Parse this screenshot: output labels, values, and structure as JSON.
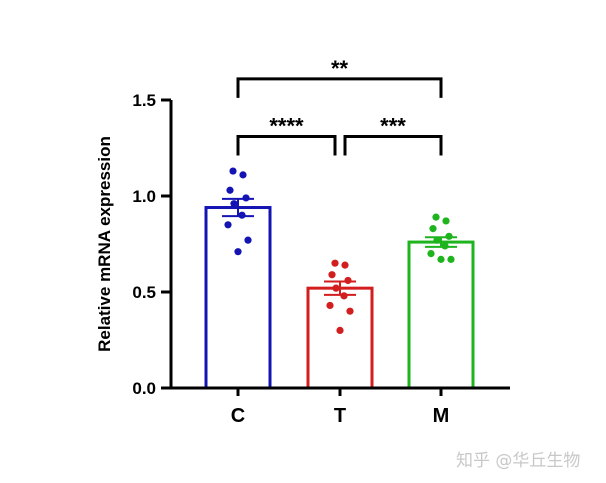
{
  "chart_data": {
    "type": "bar",
    "ylabel": "Relative mRNA expression",
    "xlabel": "",
    "ylim": [
      0,
      1.5
    ],
    "yticks": [
      0.0,
      0.5,
      1.0,
      1.5
    ],
    "ytick_labels": [
      "0.0",
      "0.5",
      "1.0",
      "1.5"
    ],
    "categories": [
      "C",
      "T",
      "M"
    ],
    "values": [
      0.94,
      0.52,
      0.76
    ],
    "sem": [
      0.045,
      0.035,
      0.025
    ],
    "colors": [
      "#1414b4",
      "#d21e1e",
      "#1eb41e"
    ],
    "points": [
      [
        1.13,
        1.11,
        1.03,
        0.99,
        0.96,
        0.9,
        0.85,
        0.77,
        0.71
      ],
      [
        0.65,
        0.64,
        0.59,
        0.56,
        0.52,
        0.48,
        0.43,
        0.4,
        0.3
      ],
      [
        0.89,
        0.87,
        0.83,
        0.79,
        0.77,
        0.74,
        0.7,
        0.67,
        0.67
      ]
    ],
    "significance": [
      {
        "from": "C",
        "to": "T",
        "label": "****",
        "y": 1.31
      },
      {
        "from": "T",
        "to": "M",
        "label": "***",
        "y": 1.31
      },
      {
        "from": "C",
        "to": "M",
        "label": "**",
        "y": 1.61
      }
    ],
    "grid": false
  },
  "watermark": "知乎 @华丘生物"
}
